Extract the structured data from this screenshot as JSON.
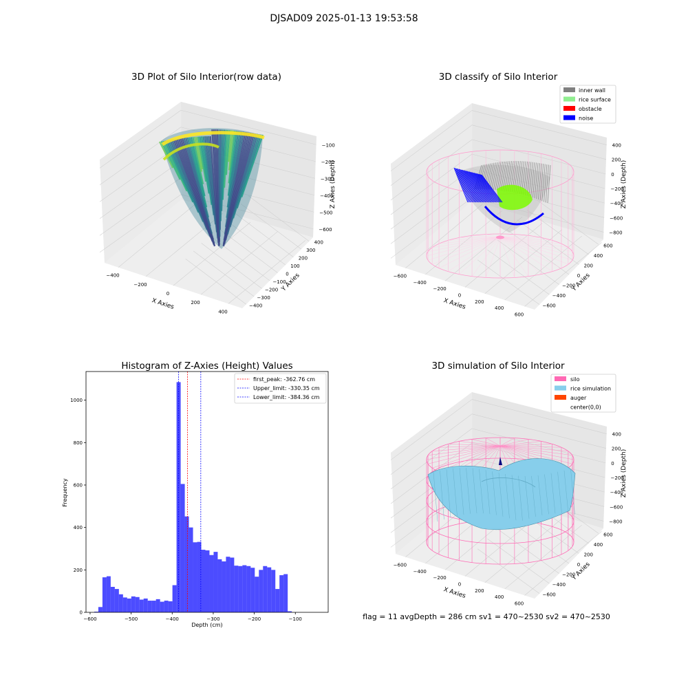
{
  "figure": {
    "suptitle": "DJSAD09 2025-01-13 19:53:58",
    "footer": "flag = 11   avgDepth = 286 cm  sv1 = 470~2530  sv2 = 470~2530"
  },
  "panels": {
    "raw": {
      "title": "3D Plot of Silo Interior(row data)",
      "xlabel": "X Axies",
      "ylabel": "Y Axies",
      "zlabel": "Z Axies (Depth)",
      "xticks": [
        "−400",
        "−200",
        "0",
        "200",
        "400"
      ],
      "yticks": [
        "400",
        "300",
        "200",
        "100",
        "0",
        "−100",
        "−200",
        "−300",
        "−400"
      ],
      "zticks": [
        "−100",
        "−200",
        "−300",
        "−400",
        "−500",
        "−600"
      ]
    },
    "classify": {
      "title": "3D classify of Silo Interior",
      "xlabel": "X Axies",
      "ylabel": "Y Axies",
      "zlabel": "Z Axies (Depth)",
      "xticks": [
        "−600",
        "−400",
        "−200",
        "0",
        "200",
        "400",
        "600"
      ],
      "yticks": [
        "600",
        "400",
        "200",
        "0",
        "−200",
        "−400",
        "−600"
      ],
      "zticks": [
        "400",
        "200",
        "0",
        "−200",
        "−400",
        "−600",
        "−800"
      ],
      "legend": [
        {
          "label": "inner wall",
          "color": "#808080"
        },
        {
          "label": "rice surface",
          "color": "#90ee90"
        },
        {
          "label": "obstacle",
          "color": "#ff0000"
        },
        {
          "label": "noise",
          "color": "#0000ff"
        }
      ]
    },
    "simulation": {
      "title": "3D simulation of Silo Interior",
      "xlabel": "X Axies",
      "ylabel": "Y Axies",
      "zlabel": "Z Axies (Depth)",
      "xticks": [
        "−600",
        "−400",
        "−200",
        "0",
        "200",
        "400",
        "600"
      ],
      "yticks": [
        "600",
        "400",
        "200",
        "0",
        "−200",
        "−400",
        "−600"
      ],
      "zticks": [
        "400",
        "200",
        "0",
        "−200",
        "−400",
        "−600",
        "−800"
      ],
      "legend": [
        {
          "label": "silo",
          "color": "#ff69b4"
        },
        {
          "label": "rice simulation",
          "color": "#87ceeb"
        },
        {
          "label": "auger",
          "color": "#ff4500"
        },
        {
          "label": "center(0,0)",
          "color": "none"
        }
      ]
    }
  },
  "chart_data": {
    "type": "bar",
    "title": "Histogram of Z-Axies (Height) Values",
    "xlabel": "Depth (cm)",
    "ylabel": "Frequency",
    "xlim": [
      -610,
      -20
    ],
    "ylim": [
      0,
      1135
    ],
    "xticks": [
      -600,
      -500,
      -400,
      -300,
      -200,
      -100
    ],
    "xtick_labels": [
      "−600",
      "−500",
      "−400",
      "−300",
      "−200",
      "−100"
    ],
    "yticks": [
      0,
      200,
      400,
      600,
      800,
      1000
    ],
    "bin_start": -590,
    "bin_width": 10.03,
    "bar_color": "#0000ff",
    "values": [
      3,
      25,
      165,
      170,
      120,
      110,
      85,
      70,
      65,
      75,
      72,
      60,
      65,
      55,
      55,
      62,
      50,
      55,
      52,
      128,
      1085,
      605,
      452,
      400,
      330,
      332,
      295,
      292,
      270,
      285,
      250,
      240,
      262,
      258,
      220,
      218,
      222,
      218,
      210,
      168,
      200,
      218,
      212,
      200,
      110,
      175,
      180,
      5
    ],
    "lines": [
      {
        "label": "first_peak: -362.76 cm",
        "x": -362.76,
        "color": "#ff0000"
      },
      {
        "label": "Upper_limit: -330.35 cm",
        "x": -330.35,
        "color": "#0000ff"
      },
      {
        "label": "Lower_limit: -384.36 cm",
        "x": -384.36,
        "color": "#0000ff"
      }
    ],
    "legend_position": "top-right"
  }
}
